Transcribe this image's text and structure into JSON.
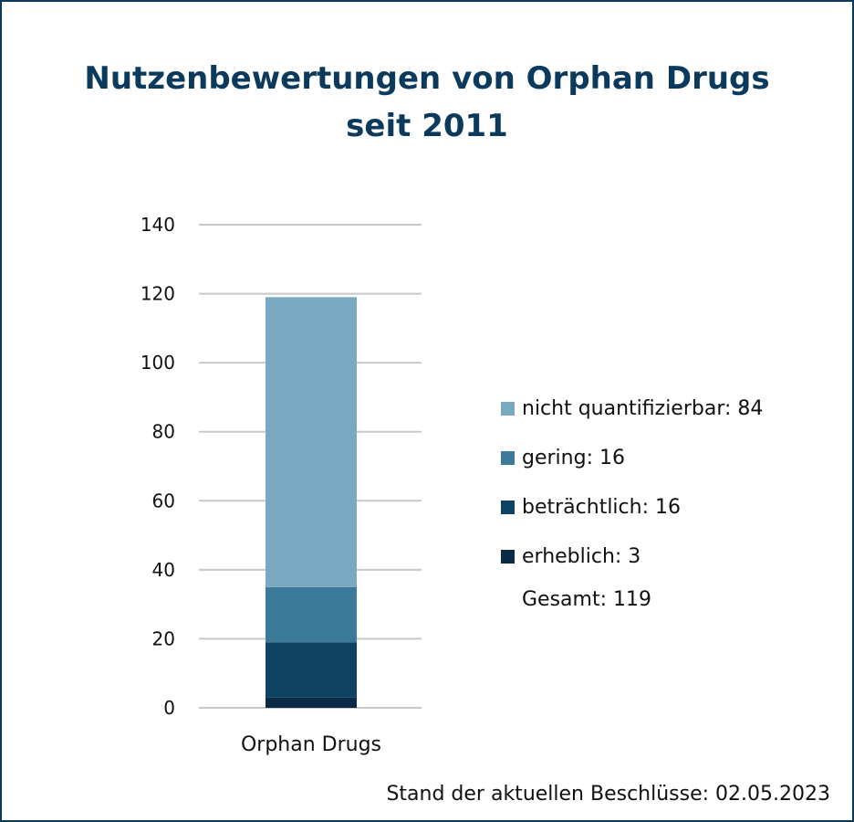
{
  "chart_data": {
    "type": "bar",
    "stacked": true,
    "title": "Nutzenbewertungen von Orphan Drugs seit 2011",
    "title_lines": [
      "Nutzenbewertungen von Orphan Drugs",
      "seit 2011"
    ],
    "categories": [
      "Orphan Drugs"
    ],
    "series": [
      {
        "name": "erheblich",
        "values": [
          3
        ],
        "color": "#0a2a45",
        "legend_label": "erheblich: 3"
      },
      {
        "name": "beträchtlich",
        "values": [
          16
        ],
        "color": "#0d4262",
        "legend_label": "beträchtlich: 16"
      },
      {
        "name": "gering",
        "values": [
          16
        ],
        "color": "#3b7a9a",
        "legend_label": "gering: 16"
      },
      {
        "name": "nicht quantifizierbar",
        "values": [
          84
        ],
        "color": "#78a9c0",
        "legend_label": "nicht quantifizierbar: 84"
      }
    ],
    "legend_order": [
      "nicht quantifizierbar",
      "gering",
      "beträchtlich",
      "erheblich"
    ],
    "total_label": "Gesamt: 119",
    "ylim": [
      0,
      140
    ],
    "yticks": [
      0,
      20,
      40,
      60,
      80,
      100,
      120,
      140
    ],
    "grid": true,
    "legend_position": "right",
    "footer": "Stand der aktuellen Beschlüsse: 02.05.2023"
  },
  "colors": {
    "title": "#0b3a5c",
    "border": "#0b3a5c",
    "grid": "#c8c8c8"
  }
}
